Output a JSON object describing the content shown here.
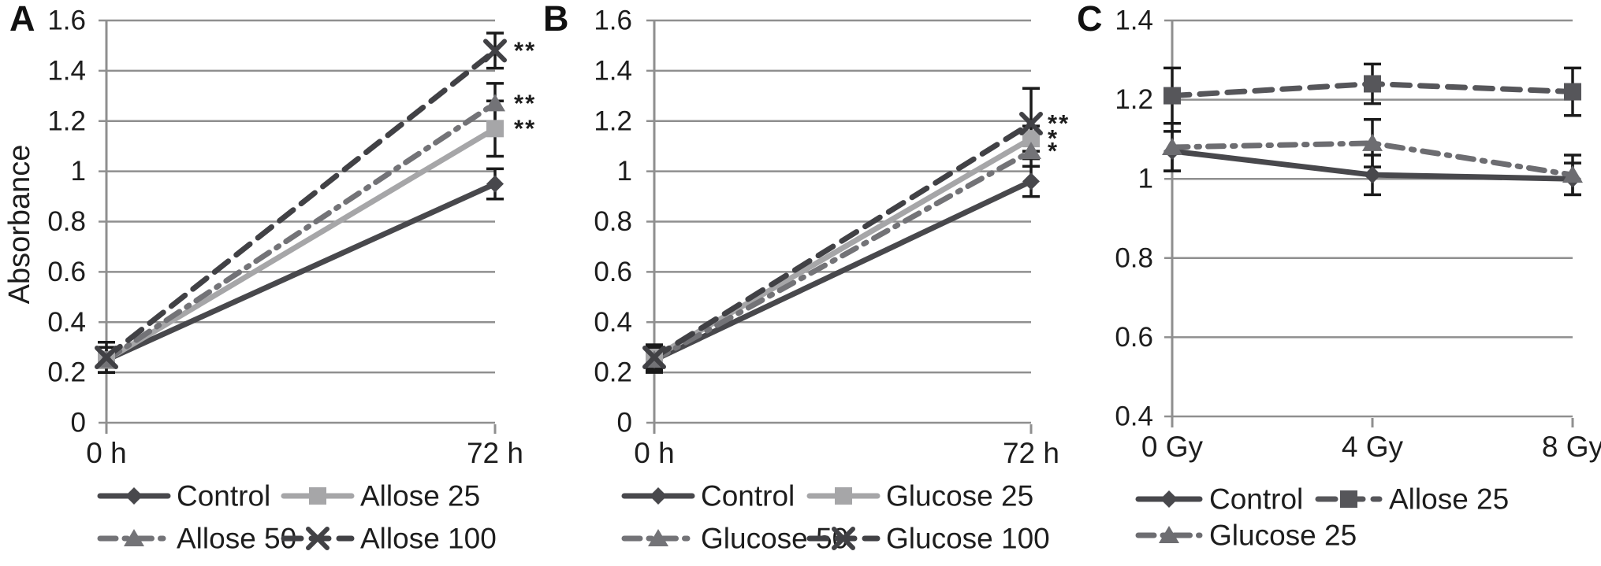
{
  "figure": {
    "background": "#ffffff",
    "text_color": "#1d1d1d",
    "grid_color": "#8f8f8f",
    "error_bar_color": "#1a1a1a",
    "significance_color": "#2a2a2a",
    "panel_labels": [
      "A",
      "B",
      "C"
    ]
  },
  "chart_data": [
    {
      "type": "line",
      "panel_label": "A",
      "title": "",
      "xlabel": "",
      "ylabel": "Absorbance",
      "categories": [
        "0 h",
        "72 h"
      ],
      "ylim": [
        0,
        1.6
      ],
      "ytick_step": 0.2,
      "grid": true,
      "legend_position": "bottom",
      "series": [
        {
          "name": "Control",
          "marker": "diamond",
          "line_style": "solid",
          "color": "#48484c",
          "values": [
            0.25,
            0.95
          ],
          "errors": [
            0.05,
            0.06
          ],
          "significance": ""
        },
        {
          "name": "Allose 25",
          "marker": "square",
          "line_style": "solid",
          "color": "#a6a6a8",
          "values": [
            0.25,
            1.17
          ],
          "errors": [
            0.03,
            0.11
          ],
          "significance": "**"
        },
        {
          "name": "Allose 50",
          "marker": "triangle",
          "line_style": "dashdot",
          "color": "#737377",
          "values": [
            0.25,
            1.27
          ],
          "errors": [
            0.03,
            0.08
          ],
          "significance": "**"
        },
        {
          "name": "Allose 100",
          "marker": "x",
          "line_style": "dash",
          "color": "#414145",
          "values": [
            0.26,
            1.48
          ],
          "errors": [
            0.06,
            0.07
          ],
          "significance": "**"
        }
      ],
      "legend_rows": [
        [
          0,
          1
        ],
        [
          2,
          3
        ]
      ]
    },
    {
      "type": "line",
      "panel_label": "B",
      "title": "",
      "xlabel": "",
      "ylabel": "",
      "categories": [
        "0 h",
        "72 h"
      ],
      "ylim": [
        0,
        1.6
      ],
      "ytick_step": 0.2,
      "grid": true,
      "legend_position": "bottom",
      "series": [
        {
          "name": "Control",
          "marker": "diamond",
          "line_style": "solid",
          "color": "#48484c",
          "values": [
            0.25,
            0.96
          ],
          "errors": [
            0.05,
            0.06
          ],
          "significance": ""
        },
        {
          "name": "Glucose 25",
          "marker": "square",
          "line_style": "solid",
          "color": "#a6a6a8",
          "values": [
            0.26,
            1.13
          ],
          "errors": [
            0.04,
            0.05
          ],
          "significance": "*"
        },
        {
          "name": "Glucose 50",
          "marker": "triangle",
          "line_style": "dashdot",
          "color": "#737377",
          "values": [
            0.25,
            1.08
          ],
          "errors": [
            0.04,
            0.06
          ],
          "significance": "*"
        },
        {
          "name": "Glucose 100",
          "marker": "x",
          "line_style": "dash",
          "color": "#414145",
          "values": [
            0.26,
            1.19
          ],
          "errors": [
            0.05,
            0.14
          ],
          "significance": "**"
        }
      ],
      "legend_rows": [
        [
          0,
          1
        ],
        [
          2,
          3
        ]
      ]
    },
    {
      "type": "line",
      "panel_label": "C",
      "title": "",
      "xlabel": "",
      "ylabel": "",
      "categories": [
        "0 Gy",
        "4 Gy",
        "8 Gy"
      ],
      "ylim": [
        0.4,
        1.4
      ],
      "ytick_step": 0.2,
      "grid": true,
      "legend_position": "bottom",
      "series": [
        {
          "name": "Control",
          "marker": "diamond",
          "line_style": "solid",
          "color": "#48484c",
          "values": [
            1.07,
            1.01,
            1.0
          ],
          "errors": [
            0.05,
            0.05,
            0.04
          ],
          "significance": ""
        },
        {
          "name": "Allose 25",
          "marker": "square",
          "line_style": "dash",
          "color": "#56565a",
          "values": [
            1.21,
            1.24,
            1.22
          ],
          "errors": [
            0.07,
            0.05,
            0.06
          ],
          "significance": ""
        },
        {
          "name": "Glucose 25",
          "marker": "triangle",
          "line_style": "dashdot",
          "color": "#6d6d71",
          "values": [
            1.08,
            1.09,
            1.01
          ],
          "errors": [
            0.06,
            0.06,
            0.05
          ],
          "significance": ""
        }
      ],
      "legend_rows": [
        [
          0,
          1
        ],
        [
          2
        ]
      ]
    }
  ]
}
